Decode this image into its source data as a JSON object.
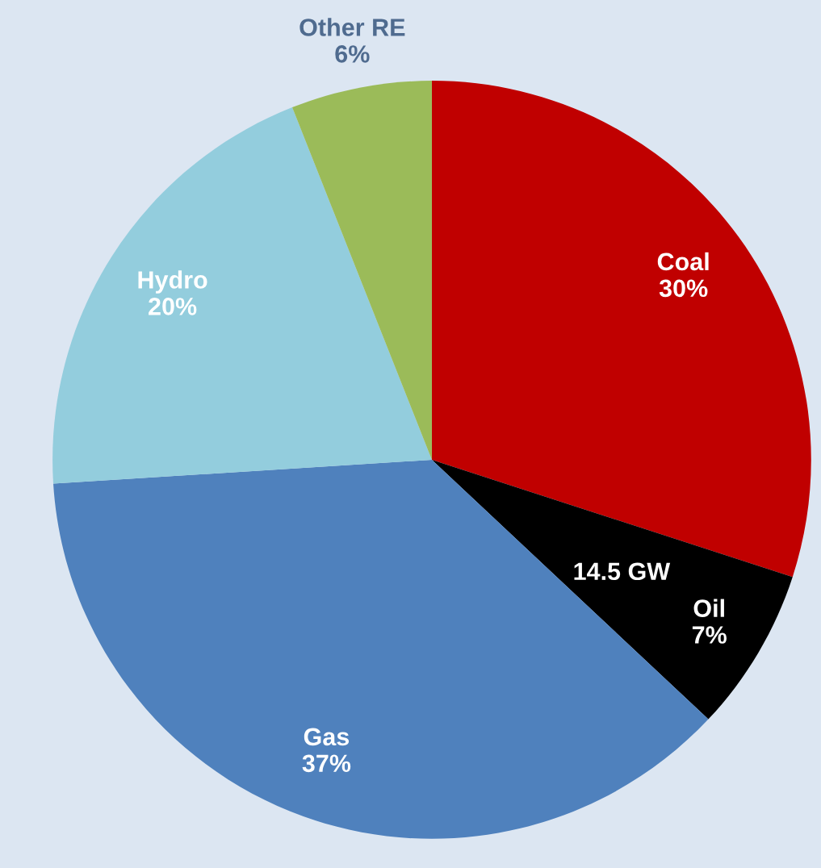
{
  "chart_data": {
    "type": "pie",
    "categories": [
      "Coal",
      "Oil",
      "Gas",
      "Hydro",
      "Other RE"
    ],
    "values": [
      30,
      7,
      37,
      20,
      6
    ],
    "value_labels": [
      "30%",
      "7%",
      "37%",
      "20%",
      "6%"
    ],
    "colors": [
      "#c00000",
      "#000000",
      "#4f81bd",
      "#93cddd",
      "#9bbb59"
    ],
    "annotations": [
      "14.5 GW"
    ]
  }
}
